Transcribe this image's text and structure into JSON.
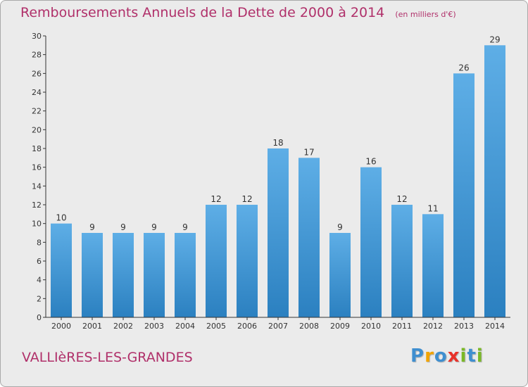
{
  "chart_data": {
    "type": "bar",
    "title": "Remboursements Annuels de la Dette de 2000 à 2014",
    "unit_note": "(en milliers d'€)",
    "categories": [
      "2000",
      "2001",
      "2002",
      "2003",
      "2004",
      "2005",
      "2006",
      "2007",
      "2008",
      "2009",
      "2010",
      "2011",
      "2012",
      "2013",
      "2014"
    ],
    "values": [
      10,
      9,
      9,
      9,
      9,
      12,
      12,
      18,
      17,
      9,
      16,
      12,
      11,
      26,
      29
    ],
    "ylim": [
      0,
      30
    ],
    "yticks": [
      0,
      2,
      4,
      6,
      8,
      10,
      12,
      14,
      16,
      18,
      20,
      22,
      24,
      26,
      28,
      30
    ],
    "grid": false,
    "xlabel": "",
    "ylabel": ""
  },
  "footer": {
    "commune": "VALLIèRES-LES-GRANDES",
    "brand": [
      "P",
      "r",
      "o",
      "x",
      "i",
      "t",
      "i"
    ]
  },
  "colors": {
    "title": "#b0306a",
    "bar_top": "#5eaee6",
    "bar_bottom": "#2b80c0",
    "axis": "#333333",
    "brand": [
      "#3f8fd0",
      "#f2a400",
      "#3f8fd0",
      "#e8322a",
      "#7ab828",
      "#3f8fd0",
      "#7ab828"
    ]
  }
}
